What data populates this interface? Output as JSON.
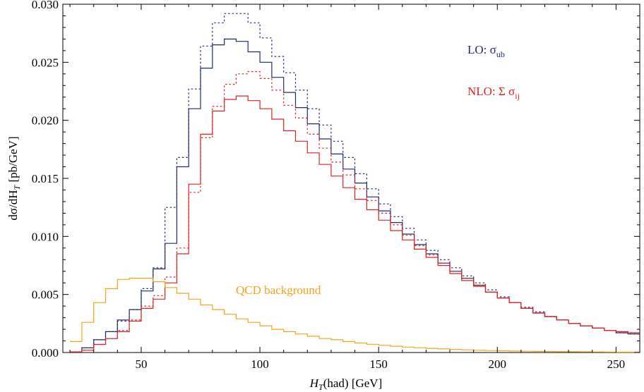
{
  "chart_data": {
    "type": "line",
    "step": true,
    "xlabel": "H_T(had) [GeV]",
    "ylabel": "dσ/dH_T [pb/GeV]",
    "xlim": [
      17,
      260
    ],
    "ylim": [
      0,
      0.03
    ],
    "xticks": [
      50,
      100,
      150,
      200,
      250
    ],
    "yticks": [
      0.0,
      0.005,
      0.01,
      0.015,
      0.02,
      0.025,
      0.03
    ],
    "ytick_labels": [
      "0.000",
      "0.005",
      "0.010",
      "0.015",
      "0.020",
      "0.025",
      "0.030"
    ],
    "grid": false,
    "bin_edges": [
      20,
      25,
      30,
      35,
      40,
      45,
      50,
      55,
      60,
      65,
      70,
      75,
      80,
      85,
      90,
      95,
      100,
      105,
      110,
      115,
      120,
      125,
      130,
      135,
      140,
      145,
      150,
      155,
      160,
      165,
      170,
      175,
      180,
      185,
      190,
      195,
      200,
      205,
      210,
      215,
      220,
      225,
      230,
      235,
      240,
      245,
      250,
      255,
      260
    ],
    "series": [
      {
        "name": "LO dotted",
        "color": "#1e2a78",
        "dash": true,
        "values": [
          5e-05,
          0.0004,
          0.0011,
          0.0018,
          0.0027,
          0.0037,
          0.0055,
          0.0073,
          0.0125,
          0.0168,
          0.0227,
          0.0264,
          0.0284,
          0.0292,
          0.0292,
          0.0284,
          0.0271,
          0.0255,
          0.0241,
          0.0226,
          0.021,
          0.0196,
          0.0182,
          0.0168,
          0.0154,
          0.0141,
          0.0128,
          0.0117,
          0.0107,
          0.0097,
          0.0088,
          0.008,
          0.0073,
          0.0066,
          0.006,
          0.0054,
          0.0048,
          0.0043,
          0.0039,
          0.0035,
          0.0031,
          0.0028,
          0.0025,
          0.0023,
          0.0021,
          0.0019,
          0.0017,
          0.0016
        ]
      },
      {
        "name": "LO solid",
        "color": "#1e2a78",
        "dash": false,
        "values": [
          5e-05,
          0.0004,
          0.0011,
          0.0018,
          0.0028,
          0.0037,
          0.0053,
          0.0072,
          0.0094,
          0.016,
          0.021,
          0.0245,
          0.0265,
          0.027,
          0.0268,
          0.0259,
          0.025,
          0.0237,
          0.0224,
          0.0211,
          0.0197,
          0.0184,
          0.0171,
          0.0158,
          0.0146,
          0.0134,
          0.0122,
          0.0112,
          0.0102,
          0.0093,
          0.0085,
          0.0077,
          0.007,
          0.0064,
          0.0058,
          0.0052,
          0.0047,
          0.0043,
          0.0038,
          0.0034,
          0.0031,
          0.0028,
          0.0025,
          0.0023,
          0.0021,
          0.0019,
          0.0017,
          0.0016
        ]
      },
      {
        "name": "NLO dotted",
        "color": "#e02020",
        "dash": true,
        "values": [
          5e-05,
          0.0002,
          0.0007,
          0.0012,
          0.0019,
          0.0028,
          0.004,
          0.0049,
          0.0065,
          0.009,
          0.0138,
          0.0185,
          0.0212,
          0.0231,
          0.024,
          0.0242,
          0.0236,
          0.0226,
          0.0213,
          0.0202,
          0.0188,
          0.0176,
          0.0164,
          0.0153,
          0.0141,
          0.0131,
          0.012,
          0.011,
          0.0101,
          0.0092,
          0.0084,
          0.0077,
          0.007,
          0.0064,
          0.0058,
          0.0052,
          0.0047,
          0.0043,
          0.0038,
          0.0034,
          0.0031,
          0.0028,
          0.0025,
          0.0023,
          0.0021,
          0.0019,
          0.0018,
          0.0017
        ]
      },
      {
        "name": "NLO solid",
        "color": "#e02020",
        "dash": false,
        "values": [
          5e-05,
          0.0002,
          0.0007,
          0.0012,
          0.0018,
          0.0027,
          0.0038,
          0.0046,
          0.006,
          0.0085,
          0.0145,
          0.0188,
          0.0208,
          0.0218,
          0.0221,
          0.0217,
          0.021,
          0.0201,
          0.0191,
          0.0182,
          0.0172,
          0.0162,
          0.0152,
          0.0142,
          0.0132,
          0.0123,
          0.0114,
          0.0105,
          0.0097,
          0.0089,
          0.0082,
          0.0075,
          0.0068,
          0.0062,
          0.0057,
          0.0052,
          0.0047,
          0.0043,
          0.0038,
          0.0034,
          0.0031,
          0.0028,
          0.0025,
          0.0023,
          0.0021,
          0.0019,
          0.0018,
          0.0017
        ]
      },
      {
        "name": "QCD background",
        "color": "#f7a21b",
        "dash": false,
        "values": [
          0.00095,
          0.0026,
          0.0043,
          0.0055,
          0.0063,
          0.0064,
          0.0064,
          0.0061,
          0.0056,
          0.0051,
          0.0046,
          0.0041,
          0.0037,
          0.0033,
          0.0029,
          0.0026,
          0.0023,
          0.002,
          0.0018,
          0.0016,
          0.0014,
          0.0012,
          0.0011,
          0.00095,
          0.00082,
          0.00071,
          0.00062,
          0.00054,
          0.00047,
          0.00041,
          0.00036,
          0.00031,
          0.00027,
          0.00023,
          0.0002,
          0.00017,
          0.00015,
          0.00013,
          0.00011,
          0.0001,
          9e-05,
          8e-05,
          7e-05,
          6e-05,
          5e-05,
          4e-05,
          3e-05,
          3e-05
        ]
      }
    ],
    "annotations": [
      {
        "id": "lo",
        "text": "LO: σ",
        "sub": "ub",
        "color": "#1e2a78"
      },
      {
        "id": "nlo",
        "text": "NLO: Σ σ",
        "sub": "ij",
        "color": "#e02020"
      },
      {
        "id": "qcd",
        "text": "QCD background",
        "color": "#f7a21b"
      }
    ]
  }
}
